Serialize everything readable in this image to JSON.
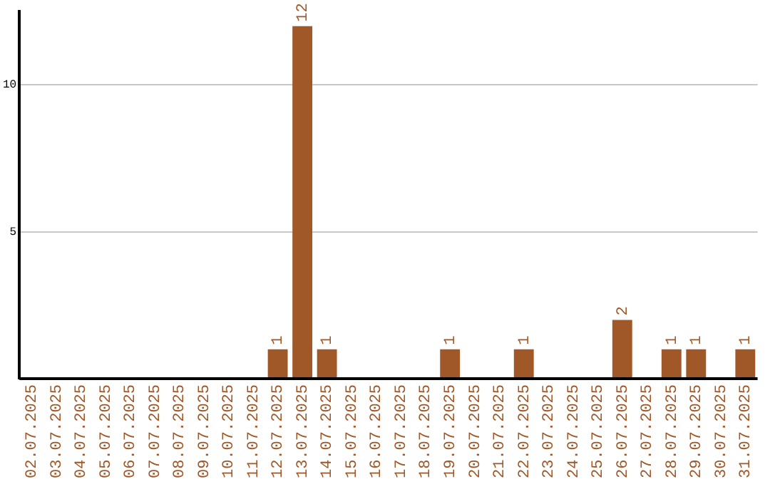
{
  "chart_data": {
    "type": "bar",
    "categories": [
      "02.07.2025",
      "03.07.2025",
      "04.07.2025",
      "05.07.2025",
      "06.07.2025",
      "07.07.2025",
      "08.07.2025",
      "09.07.2025",
      "10.07.2025",
      "11.07.2025",
      "12.07.2025",
      "13.07.2025",
      "14.07.2025",
      "15.07.2025",
      "16.07.2025",
      "17.07.2025",
      "18.07.2025",
      "19.07.2025",
      "20.07.2025",
      "21.07.2025",
      "22.07.2025",
      "23.07.2025",
      "24.07.2025",
      "25.07.2025",
      "26.07.2025",
      "27.07.2025",
      "28.07.2025",
      "29.07.2025",
      "30.07.2025",
      "31.07.2025"
    ],
    "values": [
      0,
      0,
      0,
      0,
      0,
      0,
      0,
      0,
      0,
      0,
      1,
      12,
      1,
      0,
      0,
      0,
      0,
      1,
      0,
      0,
      1,
      0,
      0,
      0,
      2,
      0,
      1,
      1,
      0,
      1
    ],
    "value_labels": [
      null,
      null,
      null,
      null,
      null,
      null,
      null,
      null,
      null,
      null,
      "1",
      "12",
      "1",
      null,
      null,
      null,
      null,
      "1",
      null,
      null,
      "1",
      null,
      null,
      null,
      "2",
      null,
      "1",
      "1",
      null,
      "1"
    ],
    "color": "#a05828",
    "ylim": [
      0,
      12.5
    ],
    "yticks": [
      5,
      10
    ],
    "grid": "y",
    "legend": false
  }
}
